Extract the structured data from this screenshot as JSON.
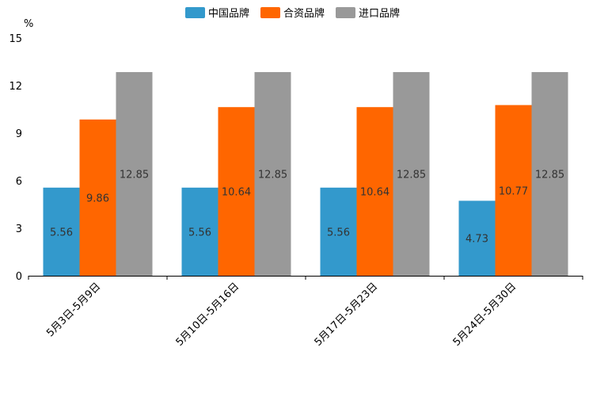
{
  "chart_data": {
    "type": "bar",
    "ylabel": "%",
    "ylim": [
      0,
      15
    ],
    "yticks": [
      0,
      3,
      6,
      9,
      12,
      15
    ],
    "categories": [
      "5月3日-5月9日",
      "5月10日-5月16日",
      "5月17日-5月23日",
      "5月24日-5月30日"
    ],
    "series": [
      {
        "name": "中国品牌",
        "color": "#3399cc",
        "values": [
          5.56,
          5.56,
          5.56,
          4.73
        ]
      },
      {
        "name": "合资品牌",
        "color": "#ff6600",
        "values": [
          9.86,
          10.64,
          10.64,
          10.77
        ]
      },
      {
        "name": "进口品牌",
        "color": "#999999",
        "values": [
          12.85,
          12.85,
          12.85,
          12.85
        ]
      }
    ],
    "legend_position": "top-center",
    "grid": false
  }
}
